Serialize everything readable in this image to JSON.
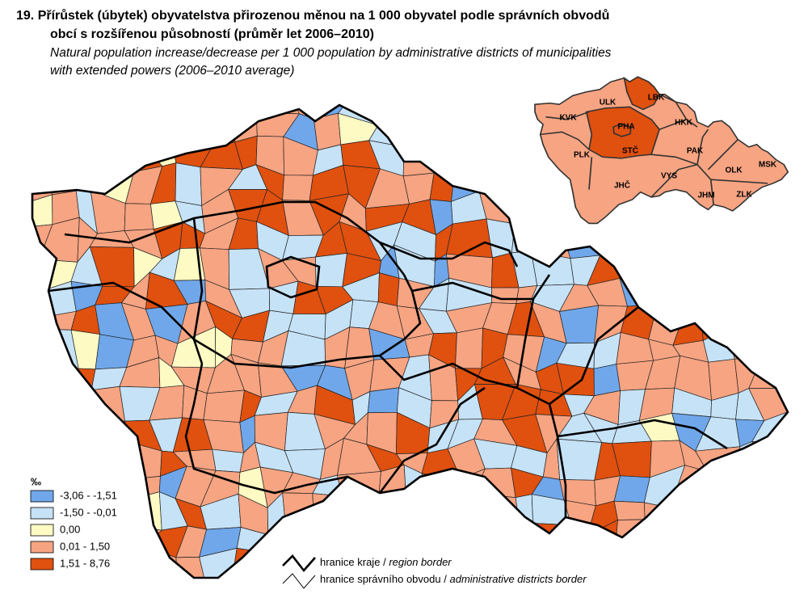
{
  "title": {
    "cs": [
      "19. Přírůstek (úbytek) obyvatelstva přirozenou měnou na 1 000 obyvatel podle správních obvodů",
      "obcí s rozšířenou působností (průměr let 2006–2010)"
    ],
    "en": [
      "Natural population increase/decrease per 1 000 population by administrative districts of municipalities",
      "with extended powers (2006–2010 average)"
    ]
  },
  "legend": {
    "unit": "‰",
    "classes": [
      {
        "label": "-3,06 - -1,51",
        "color": "#6fa7ea"
      },
      {
        "label": "-1,50 - -0,01",
        "color": "#c6e2f7"
      },
      {
        "label": "0,00",
        "color": "#fdfac4"
      },
      {
        "label": "0,01 -  1,50",
        "color": "#f7a482"
      },
      {
        "label": "1,51 -  8,76",
        "color": "#e0500f"
      }
    ]
  },
  "inset": {
    "labels": [
      "ULK",
      "LBK",
      "KVK",
      "HKK",
      "PHA",
      "STČ",
      "PAK",
      "PLK",
      "VYS",
      "OLK",
      "MSK",
      "JHČ",
      "JHM",
      "ZLK"
    ]
  },
  "borders": [
    {
      "cs": "hranice kraje",
      "sep": "/",
      "en": "region border"
    },
    {
      "cs": "hranice správního obvodu",
      "sep": "/",
      "en": "administrative districts border"
    }
  ]
}
